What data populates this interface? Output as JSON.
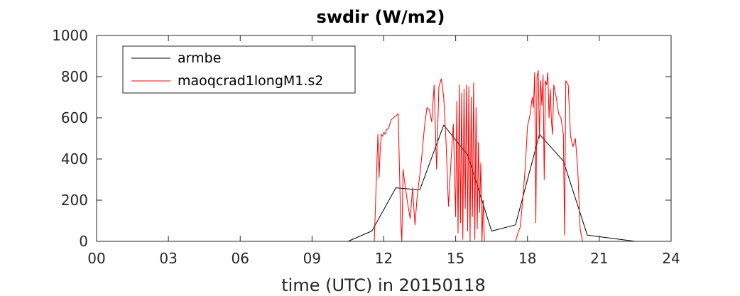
{
  "chart_data": {
    "type": "line",
    "title": "swdir  (W/m2)",
    "xlabel": "time (UTC) in 20150118",
    "ylabel": "",
    "xlim": [
      0,
      24
    ],
    "ylim": [
      0,
      1000
    ],
    "xticks": [
      0,
      3,
      6,
      9,
      12,
      15,
      18,
      21,
      24
    ],
    "xtick_labels": [
      "00",
      "03",
      "06",
      "09",
      "12",
      "15",
      "18",
      "21",
      "24"
    ],
    "yticks": [
      0,
      200,
      400,
      600,
      800,
      1000
    ],
    "ytick_labels": [
      "0",
      "200",
      "400",
      "600",
      "800",
      "1000"
    ],
    "grid": false,
    "legend_position": "top-left",
    "series": [
      {
        "name": "armbe",
        "color": "#000000",
        "x": [
          0,
          1,
          2,
          3,
          4,
          5,
          6,
          7,
          8,
          9,
          10,
          10.5,
          11.5,
          12.5,
          13.5,
          14.5,
          15.5,
          16.5,
          17.5,
          18.5,
          19.5,
          20.5,
          21.5,
          22.5,
          23.5,
          24
        ],
        "y": [
          0,
          0,
          0,
          0,
          0,
          0,
          0,
          0,
          0,
          0,
          0,
          0,
          50,
          260,
          250,
          565,
          420,
          50,
          80,
          520,
          390,
          30,
          15,
          0,
          0,
          0
        ]
      },
      {
        "name": "maoqcrad1longM1.s2",
        "color": "#ff0000",
        "x": [
          0,
          11.6,
          11.75,
          11.8,
          11.85,
          11.9,
          11.95,
          12.0,
          12.05,
          12.1,
          12.2,
          12.3,
          12.4,
          12.5,
          12.6,
          12.7,
          12.75,
          12.8,
          12.9,
          13.0,
          13.1,
          13.2,
          13.3,
          13.4,
          13.5,
          13.6,
          13.7,
          13.8,
          13.9,
          14.0,
          14.1,
          14.2,
          14.3,
          14.4,
          14.5,
          14.6,
          14.7,
          14.8,
          14.9,
          15.0,
          15.05,
          15.1,
          15.15,
          15.2,
          15.25,
          15.3,
          15.35,
          15.4,
          15.45,
          15.5,
          15.55,
          15.6,
          15.65,
          15.7,
          15.75,
          15.8,
          15.85,
          15.9,
          15.95,
          16.0,
          16.05,
          16.1,
          16.15,
          16.2,
          16.3,
          16.4,
          16.6,
          17.5,
          17.6,
          17.7,
          17.8,
          17.9,
          18.0,
          18.1,
          18.2,
          18.25,
          18.3,
          18.35,
          18.4,
          18.45,
          18.5,
          18.55,
          18.6,
          18.65,
          18.7,
          18.75,
          18.8,
          18.85,
          18.9,
          18.95,
          19.0,
          19.05,
          19.1,
          19.2,
          19.3,
          19.4,
          19.5,
          19.55,
          19.6,
          19.7,
          19.8,
          19.9,
          20.0,
          20.1,
          20.2,
          20.3,
          24
        ],
        "y": [
          0,
          0,
          520,
          310,
          450,
          520,
          510,
          530,
          520,
          540,
          550,
          590,
          600,
          610,
          620,
          110,
          0,
          350,
          260,
          180,
          110,
          260,
          80,
          230,
          320,
          430,
          560,
          650,
          640,
          580,
          760,
          350,
          750,
          790,
          700,
          480,
          170,
          380,
          570,
          120,
          680,
          40,
          760,
          90,
          720,
          10,
          740,
          160,
          760,
          50,
          750,
          0,
          700,
          120,
          770,
          10,
          650,
          60,
          480,
          140,
          380,
          0,
          200,
          0,
          0,
          0,
          0,
          0,
          40,
          70,
          200,
          350,
          560,
          610,
          700,
          650,
          820,
          90,
          800,
          830,
          500,
          780,
          660,
          810,
          300,
          780,
          760,
          820,
          600,
          740,
          580,
          520,
          760,
          700,
          620,
          600,
          520,
          30,
          780,
          760,
          510,
          460,
          500,
          350,
          60,
          0,
          0
        ]
      }
    ]
  }
}
